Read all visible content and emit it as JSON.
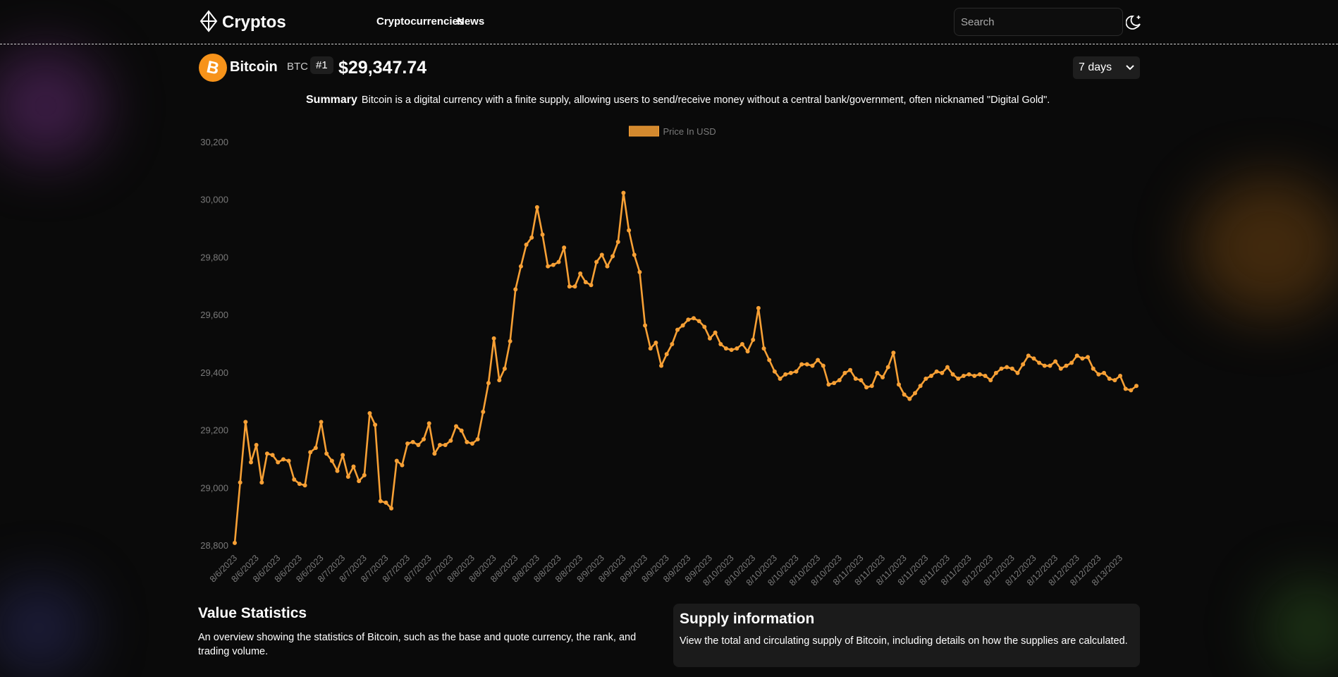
{
  "header": {
    "logo": "Cryptos",
    "nav": [
      "Cryptocurrencies",
      "News"
    ],
    "search_placeholder": "Search"
  },
  "coin": {
    "name": "Bitcoin",
    "symbol": "BTC",
    "rank": "#1",
    "price": "$29,347.74",
    "timeframe": "7 days"
  },
  "summary": {
    "label": "Summary",
    "text": "Bitcoin is a digital currency with a finite supply, allowing users to send/receive money without a central bank/government, often nicknamed \"Digital Gold\"."
  },
  "chart_data": {
    "type": "line",
    "categories": [
      "8/6/2023",
      null,
      null,
      null,
      "8/6/2023",
      null,
      null,
      null,
      "8/6/2023",
      null,
      null,
      null,
      "8/6/2023",
      null,
      null,
      null,
      "8/6/2023",
      null,
      null,
      null,
      "8/7/2023",
      null,
      null,
      null,
      "8/7/2023",
      null,
      null,
      null,
      "8/7/2023",
      null,
      null,
      null,
      "8/7/2023",
      null,
      null,
      null,
      "8/7/2023",
      null,
      null,
      null,
      "8/7/2023",
      null,
      null,
      null,
      "8/8/2023",
      null,
      null,
      null,
      "8/8/2023",
      null,
      null,
      null,
      "8/8/2023",
      null,
      null,
      null,
      "8/8/2023",
      null,
      null,
      null,
      "8/8/2023",
      null,
      null,
      null,
      "8/8/2023",
      null,
      null,
      null,
      "8/9/2023",
      null,
      null,
      null,
      "8/9/2023",
      null,
      null,
      null,
      "8/9/2023",
      null,
      null,
      null,
      "8/9/2023",
      null,
      null,
      null,
      "8/9/2023",
      null,
      null,
      null,
      "8/9/2023",
      null,
      null,
      null,
      "8/10/2023",
      null,
      null,
      null,
      "8/10/2023",
      null,
      null,
      null,
      "8/10/2023",
      null,
      null,
      null,
      "8/10/2023",
      null,
      null,
      null,
      "8/10/2023",
      null,
      null,
      null,
      "8/10/2023",
      null,
      null,
      null,
      "8/11/2023",
      null,
      null,
      null,
      "8/11/2023",
      null,
      null,
      null,
      "8/11/2023",
      null,
      null,
      null,
      "8/11/2023",
      null,
      null,
      null,
      "8/11/2023",
      null,
      null,
      null,
      "8/11/2023",
      null,
      null,
      null,
      "8/12/2023",
      null,
      null,
      null,
      "8/12/2023",
      null,
      null,
      null,
      "8/12/2023",
      null,
      null,
      null,
      "8/12/2023",
      null,
      null,
      null,
      "8/12/2023",
      null,
      null,
      null,
      "8/12/2023",
      null,
      null,
      null,
      "8/13/2023",
      null,
      null,
      null
    ],
    "series": [
      {
        "name": "Price In USD",
        "color": "#f7a035",
        "values": [
          28810,
          29020,
          29230,
          29090,
          29150,
          29020,
          29120,
          29115,
          29090,
          29100,
          29095,
          29030,
          29015,
          29010,
          29125,
          29140,
          29230,
          29120,
          29095,
          29060,
          29115,
          29040,
          29075,
          29025,
          29045,
          29260,
          29220,
          28955,
          28950,
          28930,
          29095,
          29080,
          29155,
          29160,
          29150,
          29170,
          29225,
          29120,
          29150,
          29150,
          29165,
          29215,
          29200,
          29160,
          29155,
          29170,
          29265,
          29365,
          29520,
          29375,
          29415,
          29510,
          29690,
          29770,
          29845,
          29870,
          29975,
          29880,
          29770,
          29775,
          29785,
          29835,
          29700,
          29700,
          29745,
          29715,
          29705,
          29785,
          29810,
          29770,
          29805,
          29855,
          30025,
          29895,
          29810,
          29750,
          29565,
          29485,
          29505,
          29425,
          29465,
          29500,
          29550,
          29565,
          29585,
          29590,
          29580,
          29560,
          29520,
          29540,
          29500,
          29485,
          29480,
          29485,
          29500,
          29475,
          29515,
          29625,
          29485,
          29445,
          29405,
          29380,
          29395,
          29400,
          29405,
          29430,
          29430,
          29425,
          29445,
          29425,
          29360,
          29365,
          29375,
          29400,
          29410,
          29380,
          29375,
          29350,
          29355,
          29400,
          29385,
          29420,
          29470,
          29360,
          29325,
          29310,
          29330,
          29355,
          29380,
          29390,
          29405,
          29400,
          29420,
          29395,
          29380,
          29390,
          29395,
          29390,
          29395,
          29390,
          29375,
          29400,
          29415,
          29420,
          29415,
          29400,
          29430,
          29460,
          29450,
          29435,
          29425,
          29425,
          29440,
          29415,
          29425,
          29435,
          29460,
          29450,
          29455,
          29415,
          29395,
          29400,
          29380,
          29375,
          29390,
          29345,
          29340,
          29355
        ]
      }
    ],
    "ylim": [
      28800,
      30200
    ],
    "yticks": [
      {
        "value": 28800,
        "label": "28,800"
      },
      {
        "value": 29000,
        "label": "29,000"
      },
      {
        "value": 29200,
        "label": "29,200"
      },
      {
        "value": 29400,
        "label": "29,400"
      },
      {
        "value": 29600,
        "label": "29,600"
      },
      {
        "value": 29800,
        "label": "29,800"
      },
      {
        "value": 30000,
        "label": "30,000"
      },
      {
        "value": 30200,
        "label": "30,200"
      }
    ],
    "grid": false,
    "legend": "top"
  },
  "sections": {
    "value_statistics": {
      "title": "Value Statistics",
      "description": "An overview showing the statistics of Bitcoin, such as the base and quote currency, the rank, and trading volume."
    },
    "supply": {
      "title": "Supply information",
      "description": "View the total and circulating supply of Bitcoin, including details on how the supplies are calculated."
    }
  }
}
